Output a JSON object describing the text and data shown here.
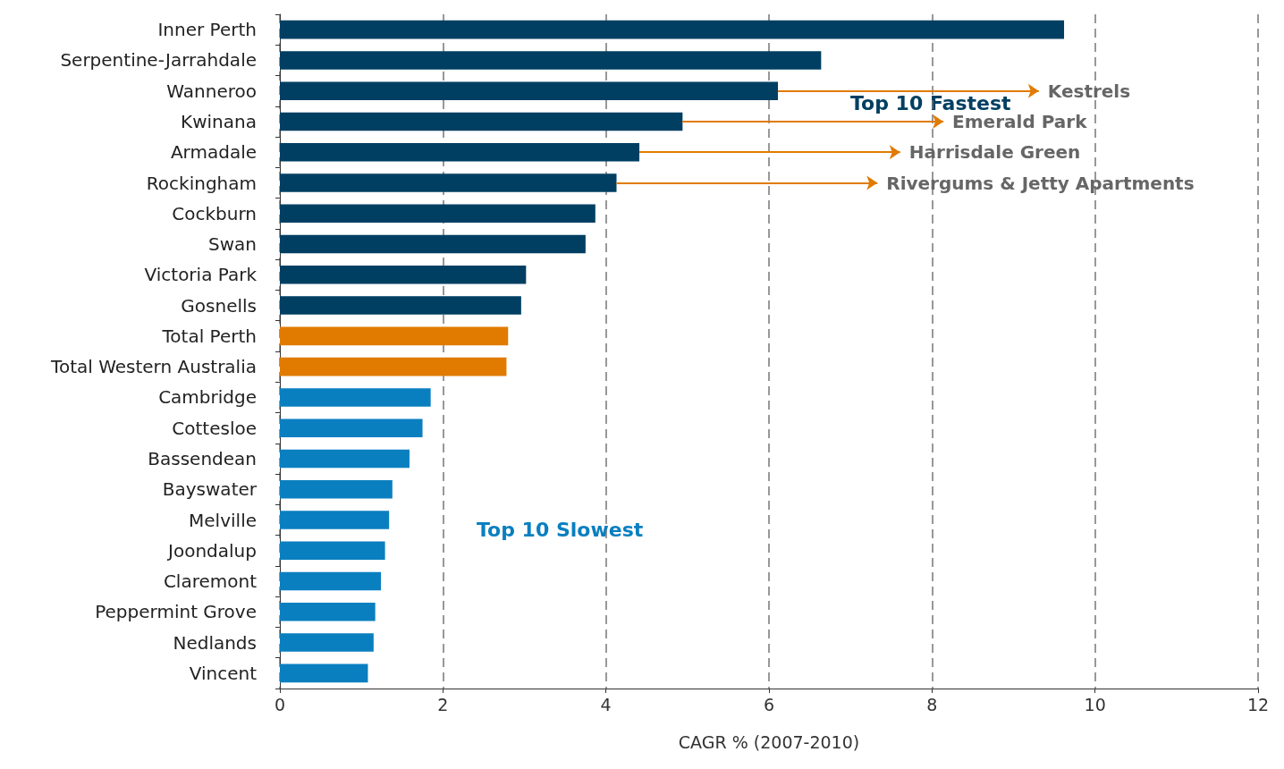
{
  "chart_data": {
    "type": "bar",
    "orientation": "horizontal",
    "xlabel": "CAGR % (2007-2010)",
    "categories": [
      "Inner Perth",
      "Serpentine-Jarrahdale",
      "Wanneroo",
      "Kwinana",
      "Armadale",
      "Rockingham",
      "Cockburn",
      "Swan",
      "Victoria Park",
      "Gosnells",
      "Total Perth",
      "Total Western Australia",
      "Cambridge",
      "Cottesloe",
      "Bassendean",
      "Bayswater",
      "Melville",
      "Joondalup",
      "Claremont",
      "Peppermint Grove",
      "Nedlands",
      "Vincent"
    ],
    "values": [
      9.62,
      6.64,
      6.11,
      4.94,
      4.41,
      4.13,
      3.87,
      3.75,
      3.02,
      2.96,
      2.8,
      2.78,
      1.85,
      1.75,
      1.59,
      1.38,
      1.34,
      1.29,
      1.24,
      1.17,
      1.15,
      1.08
    ],
    "colors": [
      "#003f62",
      "#003f62",
      "#003f62",
      "#003f62",
      "#003f62",
      "#003f62",
      "#003f62",
      "#003f62",
      "#003f62",
      "#003f62",
      "#e07b00",
      "#e07b00",
      "#0a7fc0",
      "#0a7fc0",
      "#0a7fc0",
      "#0a7fc0",
      "#0a7fc0",
      "#0a7fc0",
      "#0a7fc0",
      "#0a7fc0",
      "#0a7fc0",
      "#0a7fc0"
    ],
    "xlim": [
      0,
      12
    ],
    "xticks": [
      0,
      2,
      4,
      6,
      8,
      10,
      12
    ],
    "grid": "x",
    "annotations": [
      "Top 10 Fastest",
      "Top 10 Slowest",
      {
        "text": "Kestrels",
        "x": 6.11,
        "y": "Wanneroo"
      },
      {
        "text": "Emerald Park",
        "x": 4.94,
        "y": "Kwinana"
      },
      {
        "text": "Harrisdale Green",
        "x": 4.41,
        "y": "Armadale"
      },
      {
        "text": "Rivergums & Jetty Apartments",
        "x": 4.13,
        "y": "Rockingham"
      }
    ]
  }
}
